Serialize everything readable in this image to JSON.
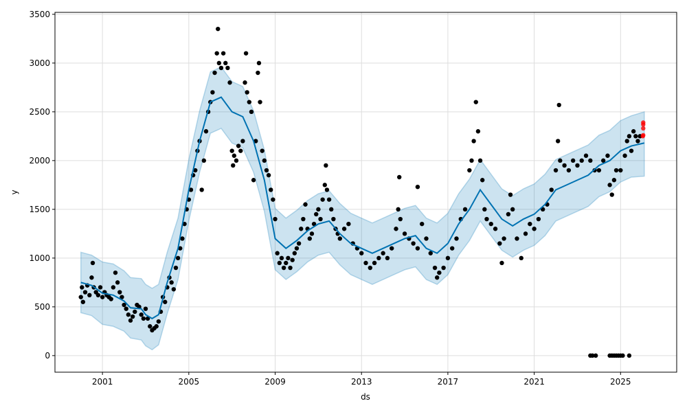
{
  "chart_data": {
    "type": "line",
    "title": "",
    "xlabel": "ds",
    "ylabel": "y",
    "xlim": [
      1998.8,
      2027.6
    ],
    "ylim": [
      -170,
      3520
    ],
    "grid": true,
    "x_ticks": [
      "2001",
      "2005",
      "2009",
      "2013",
      "2017",
      "2021",
      "2025"
    ],
    "x_tick_values": [
      2001,
      2005,
      2009,
      2013,
      2017,
      2021,
      2025
    ],
    "y_ticks": [
      "0",
      "500",
      "1000",
      "1500",
      "2000",
      "2500",
      "3000",
      "3500"
    ],
    "y_tick_values": [
      0,
      500,
      1000,
      1500,
      2000,
      2500,
      3000,
      3500
    ],
    "colors": {
      "forecast": "#0072B2",
      "band": "#0072B2",
      "observed": "#000000",
      "highlight": "#FF0000",
      "grid": "#dddddd"
    },
    "forecast": {
      "x": [
        2000.0,
        2000.5,
        2001.0,
        2001.5,
        2002.0,
        2002.3,
        2002.8,
        2003.0,
        2003.3,
        2003.6,
        2004.0,
        2004.5,
        2005.0,
        2005.5,
        2006.0,
        2006.5,
        2007.0,
        2007.5,
        2008.0,
        2008.5,
        2009.0,
        2009.5,
        2010.0,
        2010.5,
        2011.0,
        2011.5,
        2012.0,
        2012.5,
        2013.0,
        2013.5,
        2014.0,
        2014.5,
        2015.0,
        2015.5,
        2016.0,
        2016.5,
        2017.0,
        2017.5,
        2018.0,
        2018.5,
        2019.0,
        2019.5,
        2020.0,
        2020.5,
        2021.0,
        2021.5,
        2022.0,
        2022.5,
        2023.0,
        2023.5,
        2024.0,
        2024.5,
        2025.0,
        2025.5,
        2026.1
      ],
      "yhat": [
        750,
        720,
        640,
        620,
        560,
        490,
        480,
        420,
        380,
        420,
        750,
        1100,
        1700,
        2200,
        2600,
        2650,
        2500,
        2450,
        2200,
        1800,
        1200,
        1100,
        1180,
        1280,
        1350,
        1380,
        1250,
        1150,
        1100,
        1050,
        1100,
        1150,
        1200,
        1230,
        1100,
        1050,
        1150,
        1350,
        1500,
        1700,
        1550,
        1400,
        1330,
        1400,
        1450,
        1550,
        1700,
        1750,
        1800,
        1850,
        1950,
        2000,
        2100,
        2150,
        2180
      ],
      "yhat_lower": [
        440,
        410,
        320,
        300,
        250,
        180,
        160,
        100,
        60,
        110,
        430,
        780,
        1380,
        1880,
        2280,
        2330,
        2180,
        2130,
        1880,
        1480,
        880,
        780,
        860,
        960,
        1030,
        1060,
        930,
        830,
        780,
        730,
        780,
        830,
        880,
        910,
        780,
        730,
        830,
        1030,
        1180,
        1380,
        1230,
        1080,
        1010,
        1080,
        1130,
        1230,
        1380,
        1430,
        1480,
        1530,
        1630,
        1680,
        1780,
        1830,
        1840
      ],
      "yhat_upper": [
        1060,
        1030,
        960,
        940,
        870,
        800,
        790,
        730,
        690,
        730,
        1060,
        1410,
        2010,
        2510,
        2910,
        2960,
        2810,
        2760,
        2510,
        2110,
        1510,
        1410,
        1490,
        1590,
        1660,
        1690,
        1560,
        1460,
        1410,
        1360,
        1410,
        1460,
        1510,
        1540,
        1410,
        1360,
        1460,
        1660,
        1810,
        2010,
        1860,
        1710,
        1640,
        1710,
        1760,
        1860,
        2010,
        2060,
        2110,
        2160,
        2260,
        2310,
        2410,
        2460,
        2500
      ]
    },
    "observed": [
      [
        2000.0,
        600
      ],
      [
        2000.05,
        700
      ],
      [
        2000.1,
        550
      ],
      [
        2000.2,
        650
      ],
      [
        2000.3,
        720
      ],
      [
        2000.4,
        620
      ],
      [
        2000.5,
        800
      ],
      [
        2000.55,
        950
      ],
      [
        2000.6,
        700
      ],
      [
        2000.7,
        650
      ],
      [
        2000.8,
        620
      ],
      [
        2000.9,
        700
      ],
      [
        2001.0,
        600
      ],
      [
        2001.1,
        650
      ],
      [
        2001.2,
        620
      ],
      [
        2001.3,
        600
      ],
      [
        2001.4,
        580
      ],
      [
        2001.5,
        700
      ],
      [
        2001.6,
        850
      ],
      [
        2001.7,
        750
      ],
      [
        2001.8,
        650
      ],
      [
        2001.9,
        600
      ],
      [
        2002.0,
        520
      ],
      [
        2002.1,
        480
      ],
      [
        2002.2,
        420
      ],
      [
        2002.3,
        360
      ],
      [
        2002.4,
        400
      ],
      [
        2002.5,
        450
      ],
      [
        2002.6,
        520
      ],
      [
        2002.7,
        500
      ],
      [
        2002.8,
        420
      ],
      [
        2002.9,
        380
      ],
      [
        2003.0,
        480
      ],
      [
        2003.1,
        380
      ],
      [
        2003.2,
        300
      ],
      [
        2003.3,
        260
      ],
      [
        2003.4,
        280
      ],
      [
        2003.5,
        300
      ],
      [
        2003.6,
        350
      ],
      [
        2003.7,
        450
      ],
      [
        2003.8,
        600
      ],
      [
        2003.9,
        550
      ],
      [
        2004.0,
        700
      ],
      [
        2004.1,
        800
      ],
      [
        2004.2,
        750
      ],
      [
        2004.3,
        680
      ],
      [
        2004.4,
        900
      ],
      [
        2004.5,
        1000
      ],
      [
        2004.6,
        1100
      ],
      [
        2004.7,
        1200
      ],
      [
        2004.8,
        1350
      ],
      [
        2004.9,
        1500
      ],
      [
        2005.0,
        1600
      ],
      [
        2005.1,
        1700
      ],
      [
        2005.2,
        1850
      ],
      [
        2005.3,
        1900
      ],
      [
        2005.4,
        2100
      ],
      [
        2005.5,
        2200
      ],
      [
        2005.6,
        1700
      ],
      [
        2005.7,
        2000
      ],
      [
        2005.8,
        2300
      ],
      [
        2005.9,
        2500
      ],
      [
        2006.0,
        2600
      ],
      [
        2006.1,
        2700
      ],
      [
        2006.2,
        2900
      ],
      [
        2006.3,
        3100
      ],
      [
        2006.35,
        3350
      ],
      [
        2006.4,
        3000
      ],
      [
        2006.5,
        2950
      ],
      [
        2006.6,
        3100
      ],
      [
        2006.7,
        3000
      ],
      [
        2006.8,
        2950
      ],
      [
        2006.9,
        2800
      ],
      [
        2007.0,
        2100
      ],
      [
        2007.05,
        1950
      ],
      [
        2007.1,
        2050
      ],
      [
        2007.2,
        2000
      ],
      [
        2007.3,
        2150
      ],
      [
        2007.4,
        2100
      ],
      [
        2007.5,
        2200
      ],
      [
        2007.6,
        2800
      ],
      [
        2007.65,
        3100
      ],
      [
        2007.7,
        2700
      ],
      [
        2007.8,
        2600
      ],
      [
        2007.9,
        2500
      ],
      [
        2008.0,
        1800
      ],
      [
        2008.1,
        2200
      ],
      [
        2008.2,
        2900
      ],
      [
        2008.25,
        3000
      ],
      [
        2008.3,
        2600
      ],
      [
        2008.4,
        2100
      ],
      [
        2008.5,
        2000
      ],
      [
        2008.6,
        1900
      ],
      [
        2008.7,
        1850
      ],
      [
        2008.8,
        1700
      ],
      [
        2008.9,
        1600
      ],
      [
        2009.0,
        1400
      ],
      [
        2009.1,
        1050
      ],
      [
        2009.2,
        950
      ],
      [
        2009.3,
        1000
      ],
      [
        2009.4,
        900
      ],
      [
        2009.5,
        950
      ],
      [
        2009.6,
        1000
      ],
      [
        2009.7,
        900
      ],
      [
        2009.8,
        980
      ],
      [
        2009.9,
        1050
      ],
      [
        2010.0,
        1100
      ],
      [
        2010.1,
        1150
      ],
      [
        2010.2,
        1300
      ],
      [
        2010.3,
        1400
      ],
      [
        2010.4,
        1550
      ],
      [
        2010.5,
        1300
      ],
      [
        2010.6,
        1200
      ],
      [
        2010.7,
        1250
      ],
      [
        2010.8,
        1350
      ],
      [
        2010.9,
        1450
      ],
      [
        2011.0,
        1500
      ],
      [
        2011.1,
        1400
      ],
      [
        2011.2,
        1600
      ],
      [
        2011.3,
        1750
      ],
      [
        2011.35,
        1950
      ],
      [
        2011.4,
        1700
      ],
      [
        2011.5,
        1600
      ],
      [
        2011.6,
        1500
      ],
      [
        2011.7,
        1400
      ],
      [
        2011.8,
        1300
      ],
      [
        2011.9,
        1250
      ],
      [
        2012.0,
        1200
      ],
      [
        2012.2,
        1300
      ],
      [
        2012.4,
        1350
      ],
      [
        2012.6,
        1150
      ],
      [
        2012.8,
        1100
      ],
      [
        2013.0,
        1050
      ],
      [
        2013.2,
        950
      ],
      [
        2013.4,
        900
      ],
      [
        2013.6,
        950
      ],
      [
        2013.8,
        1000
      ],
      [
        2014.0,
        1050
      ],
      [
        2014.2,
        1000
      ],
      [
        2014.4,
        1100
      ],
      [
        2014.6,
        1300
      ],
      [
        2014.7,
        1500
      ],
      [
        2014.75,
        1830
      ],
      [
        2014.8,
        1400
      ],
      [
        2015.0,
        1250
      ],
      [
        2015.2,
        1200
      ],
      [
        2015.4,
        1150
      ],
      [
        2015.6,
        1100
      ],
      [
        2015.6,
        1730
      ],
      [
        2015.8,
        1350
      ],
      [
        2016.0,
        1200
      ],
      [
        2016.2,
        1050
      ],
      [
        2016.4,
        900
      ],
      [
        2016.5,
        800
      ],
      [
        2016.6,
        850
      ],
      [
        2016.8,
        900
      ],
      [
        2017.0,
        1000
      ],
      [
        2017.2,
        1100
      ],
      [
        2017.4,
        1200
      ],
      [
        2017.6,
        1400
      ],
      [
        2017.8,
        1500
      ],
      [
        2018.0,
        1900
      ],
      [
        2018.1,
        2000
      ],
      [
        2018.2,
        2200
      ],
      [
        2018.3,
        2600
      ],
      [
        2018.4,
        2300
      ],
      [
        2018.5,
        2000
      ],
      [
        2018.6,
        1800
      ],
      [
        2018.7,
        1500
      ],
      [
        2018.8,
        1400
      ],
      [
        2019.0,
        1350
      ],
      [
        2019.2,
        1300
      ],
      [
        2019.4,
        1150
      ],
      [
        2019.5,
        950
      ],
      [
        2019.6,
        1200
      ],
      [
        2019.8,
        1450
      ],
      [
        2019.9,
        1650
      ],
      [
        2020.0,
        1500
      ],
      [
        2020.2,
        1200
      ],
      [
        2020.4,
        1000
      ],
      [
        2020.6,
        1250
      ],
      [
        2020.8,
        1350
      ],
      [
        2021.0,
        1300
      ],
      [
        2021.2,
        1400
      ],
      [
        2021.4,
        1500
      ],
      [
        2021.6,
        1550
      ],
      [
        2021.8,
        1700
      ],
      [
        2022.0,
        1900
      ],
      [
        2022.1,
        2200
      ],
      [
        2022.15,
        2570
      ],
      [
        2022.2,
        2000
      ],
      [
        2022.4,
        1950
      ],
      [
        2022.6,
        1900
      ],
      [
        2022.8,
        2000
      ],
      [
        2023.0,
        1950
      ],
      [
        2023.2,
        2000
      ],
      [
        2023.4,
        2050
      ],
      [
        2023.6,
        2000
      ],
      [
        2023.8,
        1900
      ],
      [
        2024.0,
        1900
      ],
      [
        2024.2,
        2000
      ],
      [
        2024.4,
        2050
      ],
      [
        2024.5,
        1750
      ],
      [
        2024.6,
        1650
      ],
      [
        2024.7,
        1800
      ],
      [
        2024.8,
        1900
      ],
      [
        2025.0,
        1900
      ],
      [
        2025.2,
        2050
      ],
      [
        2025.3,
        2200
      ],
      [
        2025.4,
        2250
      ],
      [
        2025.5,
        2100
      ],
      [
        2025.6,
        2300
      ],
      [
        2025.7,
        2250
      ],
      [
        2025.8,
        2200
      ],
      [
        2025.9,
        2250
      ],
      [
        2023.6,
        0
      ],
      [
        2023.7,
        0
      ],
      [
        2023.85,
        0
      ],
      [
        2024.5,
        0
      ],
      [
        2024.6,
        0
      ],
      [
        2024.7,
        0
      ],
      [
        2024.8,
        0
      ],
      [
        2024.9,
        0
      ],
      [
        2025.0,
        0
      ],
      [
        2025.1,
        0
      ],
      [
        2025.4,
        0
      ]
    ],
    "highlighted": [
      [
        2026.05,
        2390
      ],
      [
        2026.05,
        2370
      ],
      [
        2026.05,
        2330
      ],
      [
        2026.05,
        2260
      ],
      [
        2026.03,
        2250
      ]
    ]
  }
}
